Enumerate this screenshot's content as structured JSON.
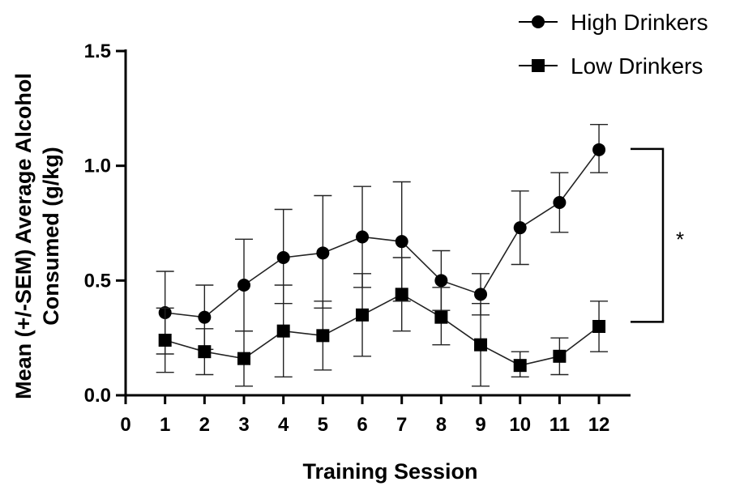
{
  "chart_data": {
    "type": "line",
    "xlabel": "Training Session",
    "ylabel_lines": [
      "Mean (+/-SEM) Average Alcohol",
      "Consumed (g/kg)"
    ],
    "x_ticks": [
      0,
      1,
      2,
      3,
      4,
      5,
      6,
      7,
      8,
      9,
      10,
      11,
      12
    ],
    "y_ticks": [
      "0.0",
      "0.5",
      "1.0",
      "1.5"
    ],
    "xlim": [
      0,
      12.8
    ],
    "ylim": [
      0,
      1.5
    ],
    "grid": false,
    "legend_position": "top-right",
    "x": [
      1,
      2,
      3,
      4,
      5,
      6,
      7,
      8,
      9,
      10,
      11,
      12
    ],
    "series": [
      {
        "name": "High Drinkers",
        "marker": "circle",
        "values": [
          0.36,
          0.34,
          0.48,
          0.6,
          0.62,
          0.69,
          0.67,
          0.5,
          0.44,
          0.73,
          0.84,
          1.07
        ],
        "err_upper": [
          0.54,
          0.48,
          0.68,
          0.81,
          0.87,
          0.91,
          0.93,
          0.63,
          0.53,
          0.89,
          0.97,
          1.18
        ],
        "err_lower": [
          0.18,
          0.2,
          0.28,
          0.4,
          0.38,
          0.47,
          0.41,
          0.37,
          0.35,
          0.57,
          0.71,
          0.97
        ]
      },
      {
        "name": "Low Drinkers",
        "marker": "square",
        "values": [
          0.24,
          0.19,
          0.16,
          0.28,
          0.26,
          0.35,
          0.44,
          0.34,
          0.22,
          0.13,
          0.17,
          0.3
        ],
        "err_upper": [
          0.38,
          0.29,
          0.28,
          0.48,
          0.41,
          0.53,
          0.6,
          0.47,
          0.4,
          0.19,
          0.25,
          0.41
        ],
        "err_lower": [
          0.1,
          0.09,
          0.04,
          0.08,
          0.11,
          0.17,
          0.28,
          0.22,
          0.04,
          0.08,
          0.09,
          0.19
        ]
      }
    ],
    "annotations": [
      {
        "type": "significance-bracket",
        "label": "*",
        "y_range": [
          0.32,
          1.07
        ]
      }
    ]
  }
}
